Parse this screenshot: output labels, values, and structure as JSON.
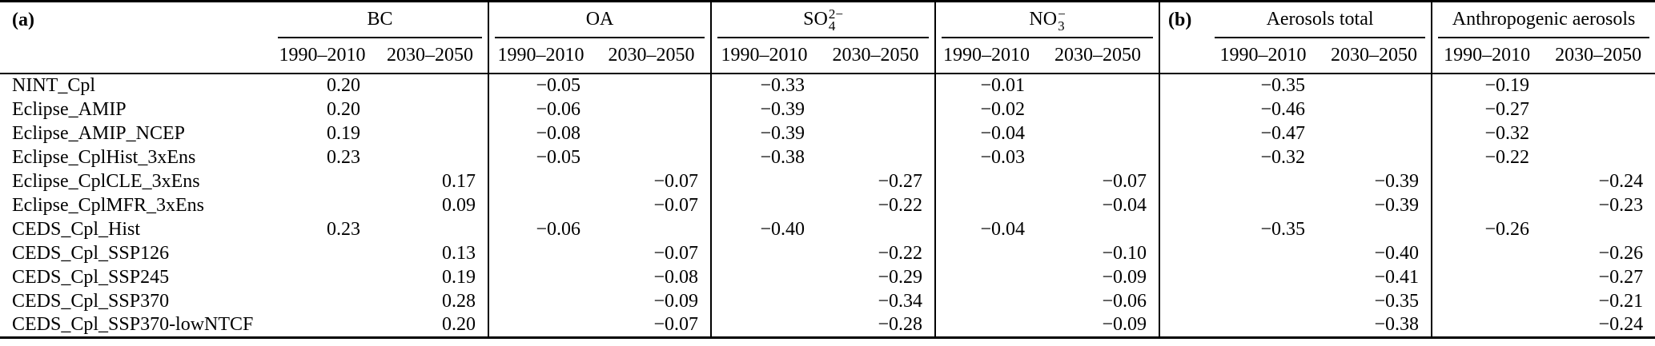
{
  "table": {
    "section_a_label": "(a)",
    "section_b_label": "(b)",
    "period_labels": [
      "1990–2010",
      "2030–2050"
    ],
    "groups_a": [
      {
        "label": "BC"
      },
      {
        "label": "OA"
      },
      {
        "base": "SO",
        "sup": "2−",
        "sub": "4"
      },
      {
        "base": "NO",
        "sup": "−",
        "sub": "3"
      }
    ],
    "groups_b": [
      {
        "label": "Aerosols total"
      },
      {
        "label": "Anthropogenic aerosols"
      }
    ],
    "column_order": [
      "BC 1990–2010",
      "BC 2030–2050",
      "OA 1990–2010",
      "OA 2030–2050",
      "SO4 1990–2010",
      "SO4 2030–2050",
      "NO3 1990–2010",
      "NO3 2030–2050",
      "Aerosols total 1990–2010",
      "Aerosols total 2030–2050",
      "Anthropogenic aerosols 1990–2010",
      "Anthropogenic aerosols 2030–2050"
    ],
    "rows": [
      {
        "label": "NINT_Cpl",
        "values": [
          "0.20",
          "",
          "−0.05",
          "",
          "−0.33",
          "",
          "−0.01",
          "",
          "−0.35",
          "",
          "−0.19",
          ""
        ]
      },
      {
        "label": "Eclipse_AMIP",
        "values": [
          "0.20",
          "",
          "−0.06",
          "",
          "−0.39",
          "",
          "−0.02",
          "",
          "−0.46",
          "",
          "−0.27",
          ""
        ]
      },
      {
        "label": "Eclipse_AMIP_NCEP",
        "values": [
          "0.19",
          "",
          "−0.08",
          "",
          "−0.39",
          "",
          "−0.04",
          "",
          "−0.47",
          "",
          "−0.32",
          ""
        ]
      },
      {
        "label": "Eclipse_CplHist_3xEns",
        "values": [
          "0.23",
          "",
          "−0.05",
          "",
          "−0.38",
          "",
          "−0.03",
          "",
          "−0.32",
          "",
          "−0.22",
          ""
        ]
      },
      {
        "label": "Eclipse_CplCLE_3xEns",
        "values": [
          "",
          "0.17",
          "",
          "−0.07",
          "",
          "−0.27",
          "",
          "−0.07",
          "",
          "−0.39",
          "",
          "−0.24"
        ]
      },
      {
        "label": "Eclipse_CplMFR_3xEns",
        "values": [
          "",
          "0.09",
          "",
          "−0.07",
          "",
          "−0.22",
          "",
          "−0.04",
          "",
          "−0.39",
          "",
          "−0.23"
        ]
      },
      {
        "label": "CEDS_Cpl_Hist",
        "values": [
          "0.23",
          "",
          "−0.06",
          "",
          "−0.40",
          "",
          "−0.04",
          "",
          "−0.35",
          "",
          "−0.26",
          ""
        ]
      },
      {
        "label": "CEDS_Cpl_SSP126",
        "values": [
          "",
          "0.13",
          "",
          "−0.07",
          "",
          "−0.22",
          "",
          "−0.10",
          "",
          "−0.40",
          "",
          "−0.26"
        ]
      },
      {
        "label": "CEDS_Cpl_SSP245",
        "values": [
          "",
          "0.19",
          "",
          "−0.08",
          "",
          "−0.29",
          "",
          "−0.09",
          "",
          "−0.41",
          "",
          "−0.27"
        ]
      },
      {
        "label": "CEDS_Cpl_SSP370",
        "values": [
          "",
          "0.28",
          "",
          "−0.09",
          "",
          "−0.34",
          "",
          "−0.06",
          "",
          "−0.35",
          "",
          "−0.21"
        ]
      },
      {
        "label": "CEDS_Cpl_SSP370-lowNTCF",
        "values": [
          "",
          "0.20",
          "",
          "−0.07",
          "",
          "−0.28",
          "",
          "−0.09",
          "",
          "−0.38",
          "",
          "−0.24"
        ]
      }
    ]
  }
}
